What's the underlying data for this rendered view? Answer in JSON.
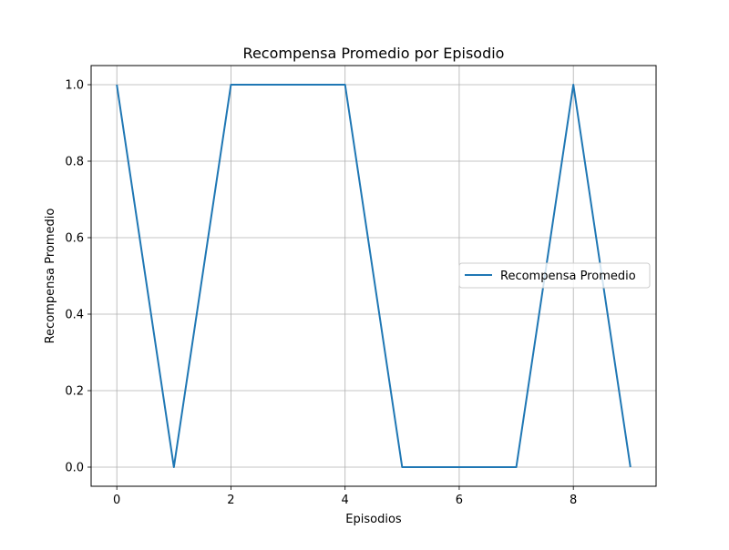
{
  "chart_data": {
    "type": "line",
    "title": "Recompensa Promedio por Episodio",
    "xlabel": "Episodios",
    "ylabel": "Recompensa Promedio",
    "x": [
      0,
      1,
      2,
      3,
      4,
      5,
      6,
      7,
      8,
      9
    ],
    "series": [
      {
        "name": "Recompensa Promedio",
        "values": [
          1.0,
          0.0,
          1.0,
          1.0,
          1.0,
          0.0,
          0.0,
          0.0,
          1.0,
          0.0
        ],
        "color": "#1f77b4"
      }
    ],
    "xlim": [
      -0.45,
      9.45
    ],
    "ylim": [
      -0.05,
      1.05
    ],
    "xticks": [
      0,
      2,
      4,
      6,
      8
    ],
    "yticks": [
      0.0,
      0.2,
      0.4,
      0.6,
      0.8,
      1.0
    ],
    "xtick_labels": [
      "0",
      "2",
      "4",
      "6",
      "8"
    ],
    "ytick_labels": [
      "0.0",
      "0.2",
      "0.4",
      "0.6",
      "0.8",
      "1.0"
    ],
    "grid": true,
    "legend_position": "center-right"
  }
}
